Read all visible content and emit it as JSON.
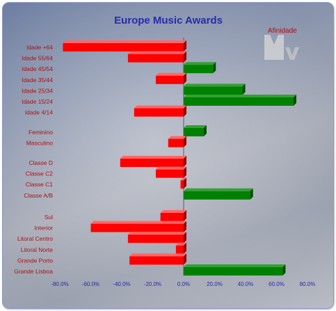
{
  "chart_data": {
    "type": "bar",
    "orientation": "horizontal",
    "title": "Europe Music Awards",
    "legend": "Afinidade",
    "xlim": [
      -80,
      80
    ],
    "x_tick_labels": [
      "-80.0%",
      "-60.0%",
      "-40.0%",
      "-20.0%",
      "0.0%",
      "20.0%",
      "40.0%",
      "60.0%",
      "80.0%"
    ],
    "colors": {
      "negative": "#ff0000",
      "positive": "#008000"
    },
    "categories": [
      {
        "label": "Idade +64",
        "value": -78
      },
      {
        "label": "Idade 55/64",
        "value": -36
      },
      {
        "label": "Idade 45/54",
        "value": 19
      },
      {
        "label": "Idade 35/44",
        "value": -18
      },
      {
        "label": "Idade 25/34",
        "value": 38
      },
      {
        "label": "Idade 15/24",
        "value": 71
      },
      {
        "label": "Idade 4/14",
        "value": -32
      },
      {
        "label": "Feminino",
        "value": 13
      },
      {
        "label": "Masculino",
        "value": -10
      },
      {
        "label": "Classe D",
        "value": -41
      },
      {
        "label": "Classe C2",
        "value": -18
      },
      {
        "label": "Classe C1",
        "value": -2
      },
      {
        "label": "Classe A/B",
        "value": 43
      },
      {
        "label": "Sul",
        "value": -15
      },
      {
        "label": "Interior",
        "value": -60
      },
      {
        "label": "Litoral Centro",
        "value": -36
      },
      {
        "label": "Litoral Norte",
        "value": -5
      },
      {
        "label": "Grande Porto",
        "value": -35
      },
      {
        "label": "Grande Lisboa",
        "value": 64
      }
    ]
  }
}
